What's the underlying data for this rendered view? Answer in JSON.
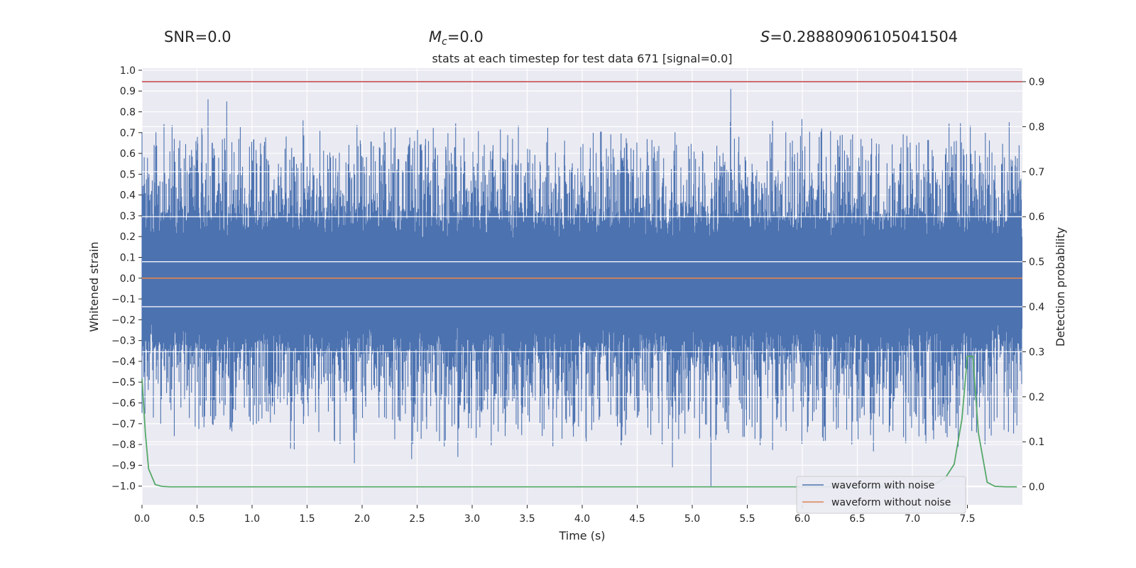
{
  "header": {
    "snr_text": "SNR=0.0",
    "mc_symbol": "M",
    "mc_subscript": "c",
    "mc_value": "=0.0",
    "s_symbol": "S",
    "s_value": "=0.28880906105041504"
  },
  "chart_data": {
    "type": "line",
    "title": "stats at each timestep for test data 671 [signal=0.0]",
    "xlabel": "Time (s)",
    "ylabel_left": "Whitened strain",
    "ylabel_right": "Detection probability",
    "xlim": [
      0.0,
      8.0
    ],
    "ylim_left": [
      -1.09,
      1.01
    ],
    "ylim_right": [
      -0.04,
      0.93
    ],
    "x_ticks": [
      "0.0",
      "0.5",
      "1.0",
      "1.5",
      "2.0",
      "2.5",
      "3.0",
      "3.5",
      "4.0",
      "4.5",
      "5.0",
      "5.5",
      "6.0",
      "6.5",
      "7.0",
      "7.5"
    ],
    "y_left_ticks": [
      "1.0",
      "0.9",
      "0.8",
      "0.7",
      "0.6",
      "0.5",
      "0.4",
      "0.3",
      "0.2",
      "0.1",
      "0.0",
      "−0.1",
      "−0.2",
      "−0.3",
      "−0.4",
      "−0.5",
      "−0.6",
      "−0.7",
      "−0.8",
      "−0.9",
      "−1.0"
    ],
    "y_right_ticks": [
      "0.9",
      "0.8",
      "0.7",
      "0.6",
      "0.5",
      "0.4",
      "0.3",
      "0.2",
      "0.1",
      "0.0"
    ],
    "grid": true,
    "legend_position": "lower-right",
    "series": [
      {
        "name": "waveform with noise",
        "axis": "left",
        "color": "#4c72b0",
        "description_range": [
          -1.0,
          0.91
        ],
        "peaks": [
          {
            "x": 0.6,
            "y": 0.86
          },
          {
            "x": 0.77,
            "y": 0.85
          },
          {
            "x": 1.35,
            "y": -0.82
          },
          {
            "x": 1.93,
            "y": -0.89
          },
          {
            "x": 2.45,
            "y": -0.87
          },
          {
            "x": 2.87,
            "y": -0.86
          },
          {
            "x": 4.82,
            "y": -0.91
          },
          {
            "x": 5.17,
            "y": -1.0
          },
          {
            "x": 5.35,
            "y": 0.91
          },
          {
            "x": 6.45,
            "y": -0.8
          },
          {
            "x": 7.88,
            "y": 0.75
          }
        ]
      },
      {
        "name": "waveform without noise",
        "axis": "left",
        "color": "#dd8452",
        "x": [
          0.0,
          8.0
        ],
        "y": [
          0.0,
          0.0
        ]
      },
      {
        "name": "",
        "axis": "right",
        "color": "#55a868",
        "x": [
          0.0,
          0.03,
          0.06,
          0.12,
          0.18,
          0.25,
          0.5,
          1.0,
          2.0,
          3.0,
          4.0,
          5.0,
          6.0,
          7.0,
          7.2,
          7.3,
          7.38,
          7.45,
          7.5,
          7.55,
          7.6,
          7.68,
          7.75,
          7.85,
          7.95
        ],
        "y": [
          0.24,
          0.12,
          0.04,
          0.005,
          0.001,
          0.0,
          0.0,
          0.0,
          0.0,
          0.0,
          0.0,
          0.0,
          0.0,
          0.0,
          0.005,
          0.02,
          0.05,
          0.15,
          0.29,
          0.29,
          0.12,
          0.01,
          0.001,
          0.0,
          0.0
        ]
      }
    ],
    "threshold": {
      "axis": "right",
      "y": 0.9,
      "color": "#c44e52"
    }
  }
}
